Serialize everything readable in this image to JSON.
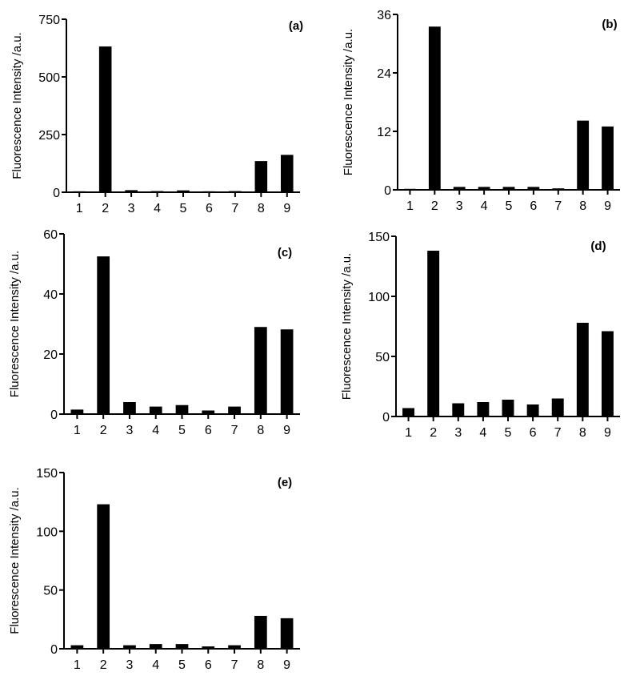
{
  "chart_data": [
    {
      "type": "bar",
      "panel_label": "(a)",
      "categories": [
        "1",
        "2",
        "3",
        "4",
        "5",
        "6",
        "7",
        "8",
        "9"
      ],
      "values": [
        4,
        632,
        9,
        5,
        8,
        4,
        5,
        135,
        162
      ],
      "ylabel": "Fluorescence Intensity /a.u.",
      "xlabel": "",
      "ylim": [
        0,
        750
      ],
      "yticks": [
        0,
        250,
        500,
        750
      ],
      "ytick_labels": [
        "0",
        "250",
        "500",
        "750"
      ]
    },
    {
      "type": "bar",
      "panel_label": "(b)",
      "categories": [
        "1",
        "2",
        "3",
        "4",
        "5",
        "6",
        "7",
        "8",
        "9"
      ],
      "values": [
        0.2,
        33.5,
        0.6,
        0.6,
        0.6,
        0.6,
        0.3,
        14.2,
        13.0
      ],
      "ylabel": "Fluorescence Intensity /a.u.",
      "xlabel": "",
      "ylim": [
        0,
        36
      ],
      "yticks": [
        0,
        12,
        24,
        36
      ],
      "ytick_labels": [
        "0",
        "12",
        "24",
        "36"
      ]
    },
    {
      "type": "bar",
      "panel_label": "(c)",
      "categories": [
        "1",
        "2",
        "3",
        "4",
        "5",
        "6",
        "7",
        "8",
        "9"
      ],
      "values": [
        1.5,
        52.5,
        4.0,
        2.5,
        3.0,
        1.2,
        2.5,
        29.0,
        28.2
      ],
      "ylabel": "Fluorescence Intensity /a.u.",
      "xlabel": "",
      "ylim": [
        0,
        60
      ],
      "yticks": [
        0,
        20,
        40,
        60
      ],
      "ytick_labels": [
        "0",
        "20",
        "40",
        "60"
      ]
    },
    {
      "type": "bar",
      "panel_label": "(d)",
      "categories": [
        "1",
        "2",
        "3",
        "4",
        "5",
        "6",
        "7",
        "8",
        "9"
      ],
      "values": [
        7,
        138,
        11,
        12,
        14,
        10,
        15,
        78,
        71
      ],
      "ylabel": "Fluorescence Intensity /a.u.",
      "xlabel": "",
      "ylim": [
        0,
        150
      ],
      "yticks": [
        0,
        50,
        100,
        150
      ],
      "ytick_labels": [
        "0",
        "50",
        "100",
        "150"
      ]
    },
    {
      "type": "bar",
      "panel_label": "(e)",
      "categories": [
        "1",
        "2",
        "3",
        "4",
        "5",
        "6",
        "7",
        "8",
        "9"
      ],
      "values": [
        3,
        123,
        3,
        4,
        4,
        2,
        3,
        28,
        26
      ],
      "ylabel": "Fluorescence Intensity /a.u.",
      "xlabel": "",
      "ylim": [
        0,
        150
      ],
      "yticks": [
        0,
        50,
        100,
        150
      ],
      "ytick_labels": [
        "0",
        "50",
        "100",
        "150"
      ]
    }
  ]
}
